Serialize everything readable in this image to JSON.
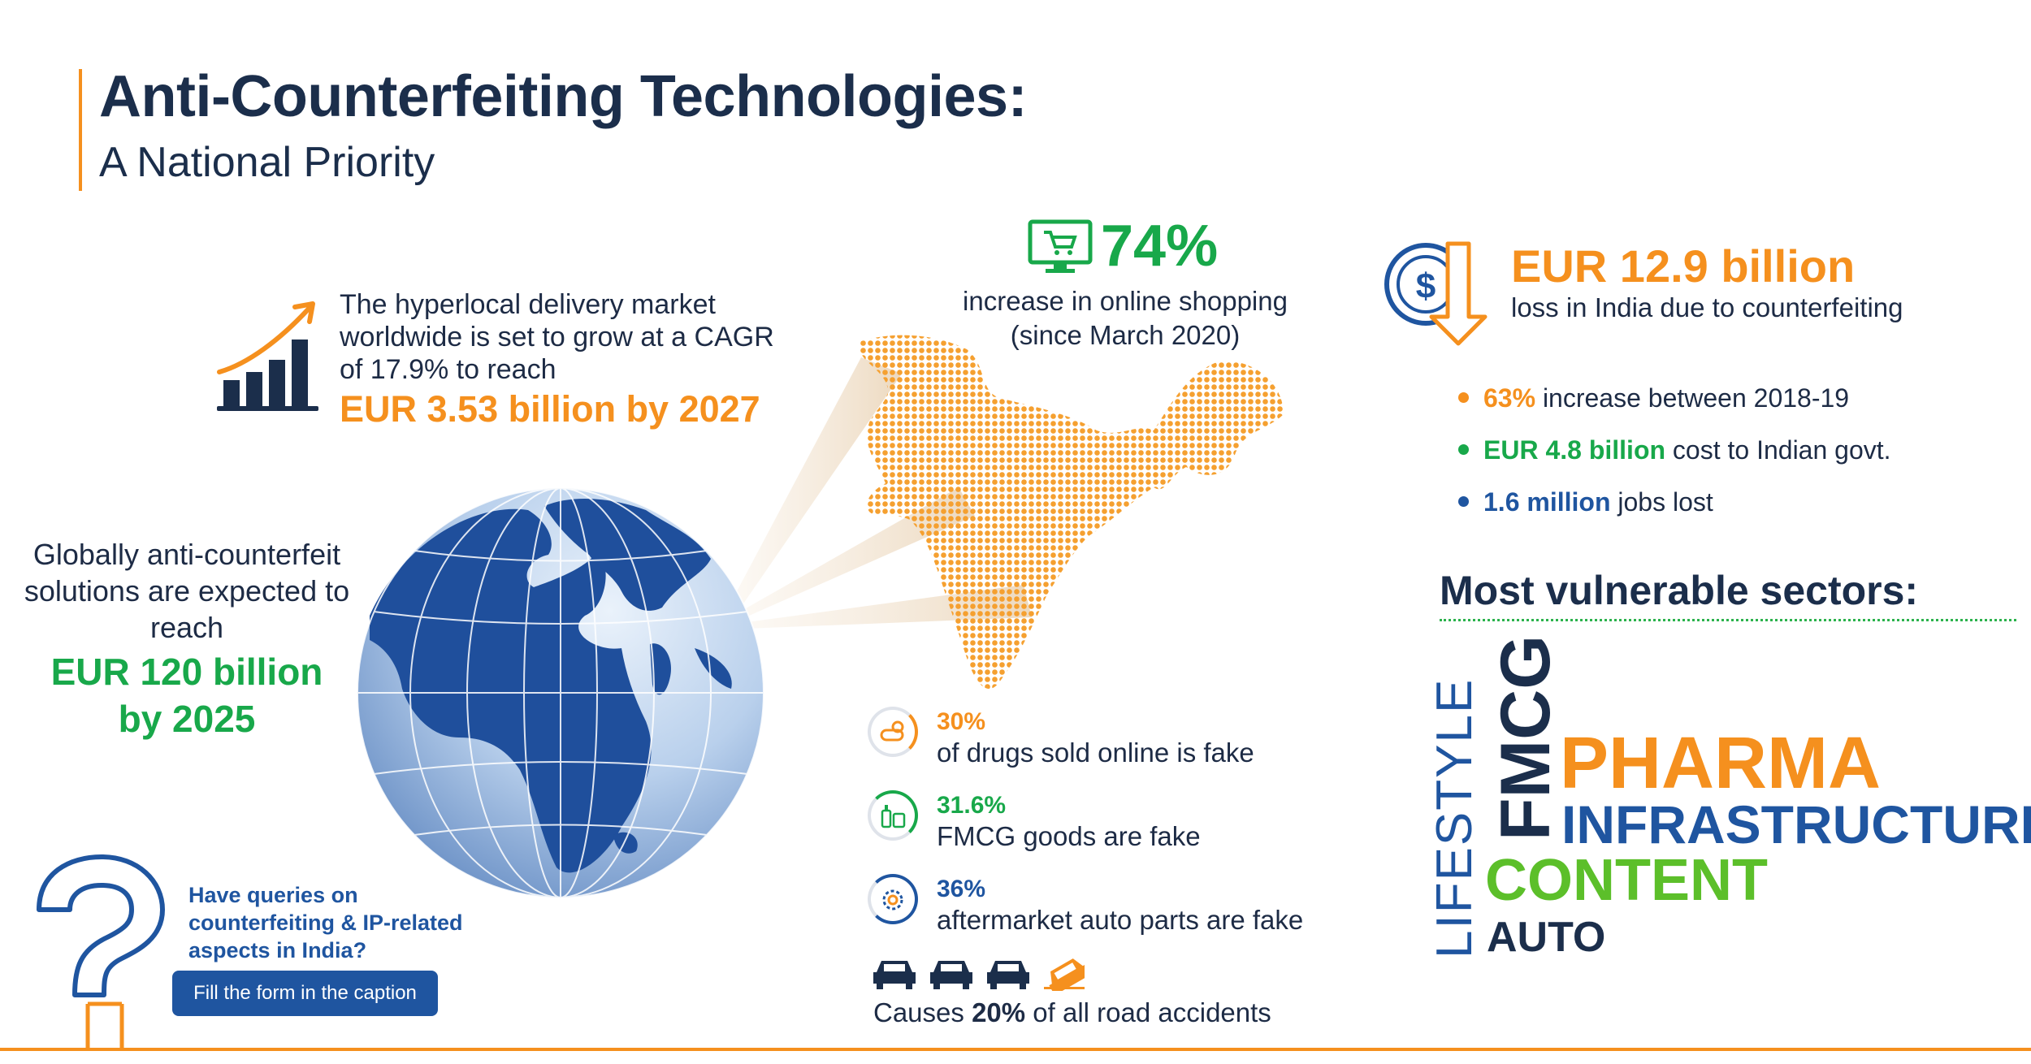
{
  "header": {
    "title": "Anti-Counterfeiting Technologies:",
    "subtitle": "A National Priority"
  },
  "hyperlocal": {
    "icon": "growth-chart-icon",
    "text": "The hyperlocal delivery market worldwide is set to grow at a CAGR of 17.9% to reach",
    "value": "EUR 3.53 billion by 2027"
  },
  "global": {
    "text": "Globally anti-counterfeit solutions are expected to reach",
    "value_line1": "EUR 120 billion",
    "value_line2": "by 2025"
  },
  "online_shopping": {
    "icon": "shopping-cart-monitor-icon",
    "value": "74%",
    "text_line1": "increase in online shopping",
    "text_line2": "(since March 2020)"
  },
  "loss": {
    "icon": "dollar-down-arrow-icon",
    "value": "EUR 12.9 billion",
    "text": "loss in India due to counterfeiting",
    "bullets": [
      {
        "value": "63%",
        "text": " increase between 2018-19",
        "color": "#f5901e"
      },
      {
        "value": "EUR 4.8 billion",
        "text": " cost to Indian govt.",
        "color": "#18a84a"
      },
      {
        "value": "1.6 million",
        "text": " jobs lost",
        "color": "#1f55a0"
      }
    ]
  },
  "sectors": {
    "title": "Most vulnerable sectors:",
    "words": [
      "LIFESTYLE",
      "FMCG",
      "PHARMA",
      "INFRASTRUCTURE",
      "CONTENT",
      "AUTO"
    ]
  },
  "stats": [
    {
      "value": "30%",
      "text": "of drugs sold online is fake",
      "color": "#f5901e",
      "icon": "pills-icon"
    },
    {
      "value": "31.6%",
      "text": "FMCG goods are fake",
      "color": "#18a84a",
      "icon": "bottles-icon"
    },
    {
      "value": "36%",
      "text": "aftermarket auto parts are fake",
      "color": "#1f55a0",
      "icon": "gear-wrench-icon"
    }
  ],
  "accidents": {
    "prefix": "Causes ",
    "value": "20%",
    "suffix": " of all road accidents"
  },
  "queries": {
    "text": "Have queries on counterfeiting & IP-related aspects in India?",
    "button": "Fill the form in the caption"
  },
  "colors": {
    "navy": "#1b2e4b",
    "orange": "#f5901e",
    "green": "#18a84a",
    "blue": "#1f55a0"
  }
}
